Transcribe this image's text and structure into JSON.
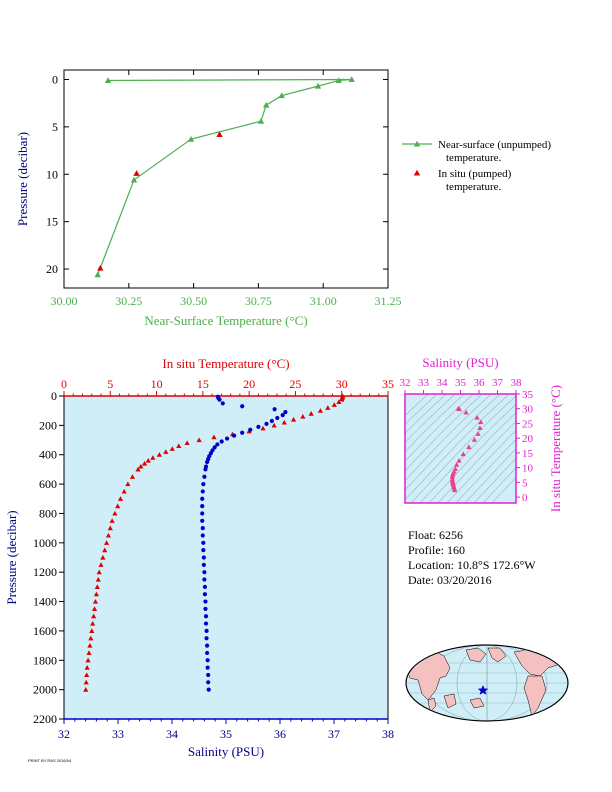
{
  "chart_data": [
    {
      "type": "line",
      "title": "",
      "xlabel": "Near-Surface Temperature (°C)",
      "ylabel": "Pressure (decibar)",
      "xlim": [
        30.0,
        31.25
      ],
      "ylim": [
        22,
        -1
      ],
      "xticks": [
        "30.00",
        "30.25",
        "30.50",
        "30.75",
        "31.00",
        "31.25"
      ],
      "yticks": [
        "0",
        "5",
        "10",
        "15",
        "20"
      ],
      "legend_position": "right",
      "series": [
        {
          "name": "Near-surface (unpumped) temperature.",
          "color": "#4caf50",
          "marker": "triangle",
          "x": [
            30.13,
            30.27,
            30.49,
            30.76,
            30.78,
            30.84,
            30.98,
            31.06,
            31.11,
            30.17
          ],
          "y": [
            20.6,
            10.6,
            6.3,
            4.4,
            2.7,
            1.7,
            0.7,
            0.1,
            0.0,
            0.1
          ]
        },
        {
          "name": "In situ (pumped) temperature.",
          "color": "#e00000",
          "marker": "triangle",
          "x": [
            30.14,
            30.28,
            30.6
          ],
          "y": [
            19.9,
            9.9,
            5.8
          ]
        }
      ]
    },
    {
      "type": "scatter",
      "title": "",
      "xlabel_top": "In situ Temperature (°C)",
      "xlabel_bottom": "Salinity (PSU)",
      "ylabel": "Pressure (decibar)",
      "top_xlim": [
        0,
        35
      ],
      "bottom_xlim": [
        32,
        38
      ],
      "ylim": [
        2200,
        0
      ],
      "top_xticks": [
        "0",
        "5",
        "10",
        "15",
        "20",
        "25",
        "30",
        "35"
      ],
      "bottom_xticks": [
        "32",
        "33",
        "34",
        "35",
        "36",
        "37",
        "38"
      ],
      "yticks": [
        "0",
        "200",
        "400",
        "600",
        "800",
        "1000",
        "1200",
        "1400",
        "1600",
        "1800",
        "2000",
        "2200"
      ],
      "series": [
        {
          "name": "",
          "axis": "top",
          "color": "#e00000",
          "marker": "triangle",
          "profile": [
            [
              0,
              30.1
            ],
            [
              10,
              30.1
            ],
            [
              20,
              30.0
            ],
            [
              40,
              29.7
            ],
            [
              60,
              29.2
            ],
            [
              80,
              28.5
            ],
            [
              100,
              27.7
            ],
            [
              120,
              26.7
            ],
            [
              140,
              25.8
            ],
            [
              160,
              24.8
            ],
            [
              180,
              23.8
            ],
            [
              200,
              22.7
            ],
            [
              220,
              21.5
            ],
            [
              240,
              20.0
            ],
            [
              260,
              18.2
            ],
            [
              280,
              16.2
            ],
            [
              300,
              14.6
            ],
            [
              320,
              13.3
            ],
            [
              340,
              12.4
            ],
            [
              360,
              11.7
            ],
            [
              380,
              11.0
            ],
            [
              400,
              10.3
            ],
            [
              420,
              9.6
            ],
            [
              440,
              9.1
            ],
            [
              460,
              8.7
            ],
            [
              480,
              8.3
            ],
            [
              500,
              8.0
            ],
            [
              550,
              7.4
            ],
            [
              600,
              6.9
            ],
            [
              650,
              6.5
            ],
            [
              700,
              6.1
            ],
            [
              750,
              5.8
            ],
            [
              800,
              5.5
            ],
            [
              850,
              5.2
            ],
            [
              900,
              5.0
            ],
            [
              950,
              4.8
            ],
            [
              1000,
              4.6
            ],
            [
              1050,
              4.4
            ],
            [
              1100,
              4.2
            ],
            [
              1150,
              4.0
            ],
            [
              1200,
              3.8
            ],
            [
              1250,
              3.7
            ],
            [
              1300,
              3.6
            ],
            [
              1350,
              3.5
            ],
            [
              1400,
              3.4
            ],
            [
              1450,
              3.3
            ],
            [
              1500,
              3.2
            ],
            [
              1550,
              3.1
            ],
            [
              1600,
              3.0
            ],
            [
              1650,
              2.9
            ],
            [
              1700,
              2.8
            ],
            [
              1750,
              2.7
            ],
            [
              1800,
              2.6
            ],
            [
              1850,
              2.5
            ],
            [
              1900,
              2.45
            ],
            [
              1950,
              2.4
            ],
            [
              2000,
              2.35
            ]
          ]
        },
        {
          "name": "",
          "axis": "bottom",
          "color": "#0000cc",
          "marker": "circle",
          "profile": [
            [
              5,
              34.85
            ],
            [
              15,
              34.86
            ],
            [
              25,
              34.88
            ],
            [
              50,
              34.94
            ],
            [
              70,
              35.3
            ],
            [
              90,
              35.9
            ],
            [
              110,
              36.1
            ],
            [
              130,
              36.05
            ],
            [
              150,
              35.95
            ],
            [
              170,
              35.85
            ],
            [
              190,
              35.75
            ],
            [
              210,
              35.6
            ],
            [
              230,
              35.45
            ],
            [
              250,
              35.3
            ],
            [
              270,
              35.15
            ],
            [
              290,
              35.02
            ],
            [
              310,
              34.92
            ],
            [
              330,
              34.84
            ],
            [
              350,
              34.79
            ],
            [
              370,
              34.75
            ],
            [
              390,
              34.72
            ],
            [
              410,
              34.69
            ],
            [
              430,
              34.67
            ],
            [
              450,
              34.65
            ],
            [
              480,
              34.63
            ],
            [
              500,
              34.62
            ],
            [
              550,
              34.6
            ],
            [
              600,
              34.58
            ],
            [
              650,
              34.57
            ],
            [
              700,
              34.56
            ],
            [
              750,
              34.56
            ],
            [
              800,
              34.56
            ],
            [
              850,
              34.56
            ],
            [
              900,
              34.57
            ],
            [
              950,
              34.57
            ],
            [
              1000,
              34.58
            ],
            [
              1050,
              34.58
            ],
            [
              1100,
              34.59
            ],
            [
              1150,
              34.59
            ],
            [
              1200,
              34.6
            ],
            [
              1250,
              34.6
            ],
            [
              1300,
              34.61
            ],
            [
              1350,
              34.61
            ],
            [
              1400,
              34.62
            ],
            [
              1450,
              34.62
            ],
            [
              1500,
              34.63
            ],
            [
              1550,
              34.63
            ],
            [
              1600,
              34.64
            ],
            [
              1650,
              34.64
            ],
            [
              1700,
              34.65
            ],
            [
              1750,
              34.65
            ],
            [
              1800,
              34.66
            ],
            [
              1850,
              34.66
            ],
            [
              1900,
              34.67
            ],
            [
              1950,
              34.67
            ],
            [
              2000,
              34.68
            ]
          ]
        }
      ]
    },
    {
      "type": "scatter",
      "title": "",
      "xlabel": "Salinity (PSU)",
      "ylabel": "In situ Temperature (°C)",
      "xlim": [
        32,
        38
      ],
      "ylim": [
        -2,
        35
      ],
      "xticks": [
        "32",
        "33",
        "34",
        "35",
        "36",
        "37",
        "38"
      ],
      "yticks": [
        "0",
        "5",
        "10",
        "15",
        "20",
        "25",
        "30",
        "35"
      ],
      "series": [
        {
          "name": "",
          "color": "#e02090",
          "marker": "triangle",
          "x": [
            34.68,
            34.67,
            34.64,
            34.62,
            34.6,
            34.58,
            34.57,
            34.56,
            34.56,
            34.57,
            34.6,
            34.65,
            34.72,
            34.79,
            34.92,
            35.15,
            35.45,
            35.75,
            35.95,
            36.05,
            36.1,
            35.9,
            35.3,
            34.94,
            34.88
          ],
          "y": [
            2.4,
            3.0,
            3.5,
            4.0,
            4.6,
            5.0,
            5.5,
            6.1,
            6.9,
            7.4,
            8.0,
            8.7,
            9.6,
            11.0,
            12.4,
            14.6,
            17.0,
            19.5,
            21.5,
            23.5,
            25.5,
            27.0,
            28.8,
            29.9,
            30.1
          ]
        }
      ]
    }
  ],
  "legend": {
    "items": [
      {
        "line1": "Near-surface (unpumped)",
        "line2": "temperature."
      },
      {
        "line1": "In situ (pumped)",
        "line2": "temperature."
      }
    ]
  },
  "info": {
    "float": "Float:  6256",
    "profile": "Profile:  160",
    "location": "Location:  10.8°S  172.6°W",
    "date": "Date:  03/20/2016"
  },
  "colors": {
    "green": "#4caf50",
    "red": "#e00000",
    "blue": "#0000cc",
    "navy": "#000080",
    "magenta": "#e020d0",
    "plot_bg": "#d0eef8",
    "land": "#f4c0c0"
  },
  "map": {
    "icon": "world-map-with-float-marker"
  },
  "footer": {
    "text": "PRINT BY RAS 2016/04"
  }
}
